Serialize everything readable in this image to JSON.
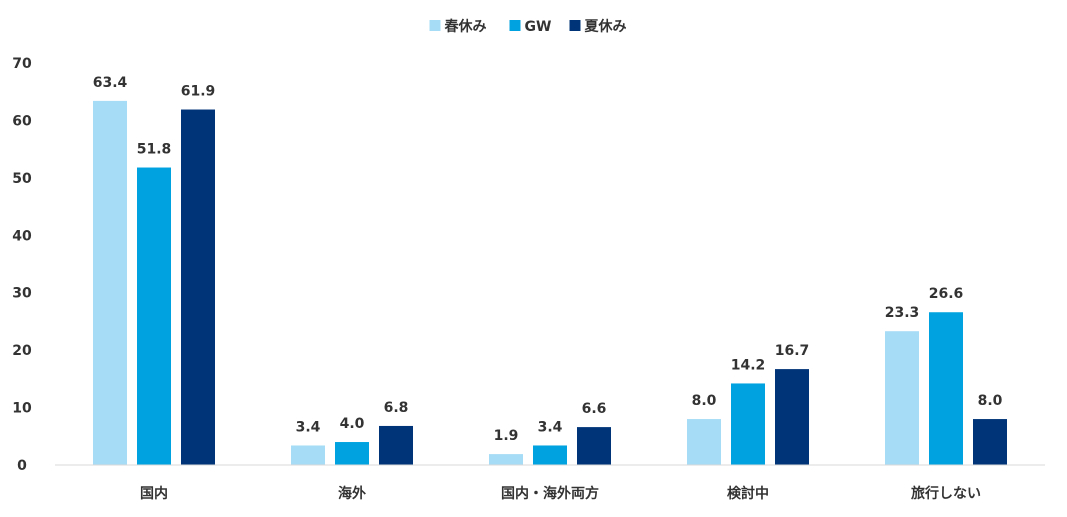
{
  "chart_data": {
    "type": "bar",
    "categories": [
      "国内",
      "海外",
      "国内・海外両方",
      "検討中",
      "旅行しない"
    ],
    "series": [
      {
        "name": "春休み",
        "color": "#a6dcf5",
        "values": [
          63.4,
          3.4,
          1.9,
          8.0,
          23.3
        ]
      },
      {
        "name": "GW",
        "color": "#00a3df",
        "values": [
          51.8,
          4.0,
          3.4,
          14.2,
          26.6
        ]
      },
      {
        "name": "夏休み",
        "color": "#003478",
        "values": [
          61.9,
          6.8,
          6.6,
          16.7,
          8.0
        ]
      }
    ],
    "ylim": [
      0,
      70
    ],
    "yticks": [
      "0",
      "10",
      "20",
      "30",
      "40",
      "50",
      "60",
      "70"
    ],
    "data_labels": [
      [
        "63.4",
        "3.4",
        "1.9",
        "8.0",
        "23.3"
      ],
      [
        "51.8",
        "4.0",
        "3.4",
        "14.2",
        "26.6"
      ],
      [
        "61.9",
        "6.8",
        "6.6",
        "16.7",
        "8.0"
      ]
    ],
    "legend_position": "top-center",
    "grid": false
  }
}
